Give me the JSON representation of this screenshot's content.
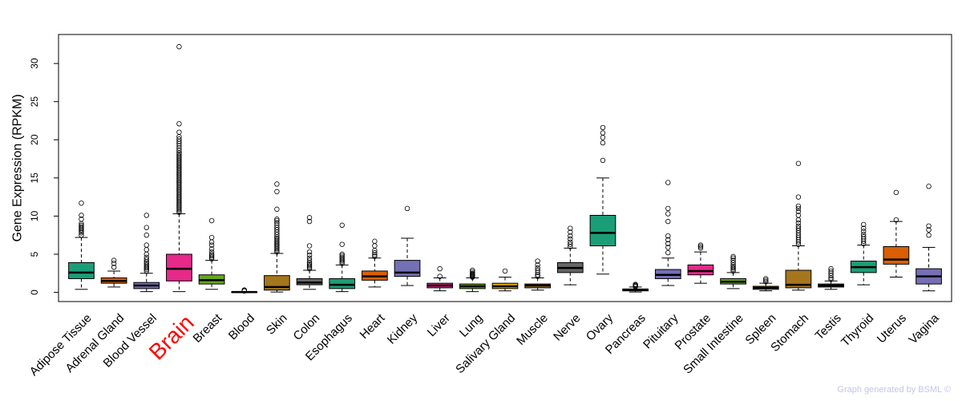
{
  "chart_data": {
    "type": "boxplot",
    "title": "",
    "xlabel": "",
    "ylabel": "Gene Expression (RPKM)",
    "ylim": [
      -1.2,
      33.8
    ],
    "yticks": [
      0,
      5,
      10,
      15,
      20,
      25,
      30
    ],
    "highlight": "Brain",
    "highlight_color": "#ff0000",
    "categories": [
      "Adipose Tissue",
      "Adrenal Gland",
      "Blood Vessel",
      "Brain",
      "Breast",
      "Blood",
      "Skin",
      "Colon",
      "Esophagus",
      "Heart",
      "Kidney",
      "Liver",
      "Lung",
      "Salivary Gland",
      "Muscle",
      "Nerve",
      "Ovary",
      "Pancreas",
      "Pituitary",
      "Prostate",
      "Small Intestine",
      "Spleen",
      "Stomach",
      "Testis",
      "Thyroid",
      "Uterus",
      "Vagina"
    ],
    "colors": [
      "#1b9e77",
      "#d95f02",
      "#7570b3",
      "#e7298a",
      "#66a61e",
      "#e6ab02",
      "#a6761d",
      "#666666",
      "#1b9e77",
      "#d95f02",
      "#7570b3",
      "#e7298a",
      "#66a61e",
      "#e6ab02",
      "#a6761d",
      "#666666",
      "#1b9e77",
      "#d95f02",
      "#7570b3",
      "#e7298a",
      "#66a61e",
      "#e6ab02",
      "#a6761d",
      "#666666",
      "#1b9e77",
      "#d95f02",
      "#7570b3"
    ],
    "boxes": [
      {
        "name": "Adipose Tissue",
        "whisker_low": 0.4,
        "q1": 1.8,
        "median": 2.6,
        "q3": 3.9,
        "whisker_high": 7.2,
        "outliers": [
          7.5,
          7.8,
          8.0,
          8.2,
          8.4,
          8.6,
          8.8,
          9.0,
          9.6,
          10.1,
          11.7
        ]
      },
      {
        "name": "Adrenal Gland",
        "whisker_low": 0.7,
        "q1": 1.2,
        "median": 1.5,
        "q3": 1.9,
        "whisker_high": 2.8,
        "outliers": [
          3.3,
          3.8,
          4.2
        ]
      },
      {
        "name": "Blood Vessel",
        "whisker_low": 0.1,
        "q1": 0.5,
        "median": 0.9,
        "q3": 1.3,
        "whisker_high": 2.5,
        "outliers": [
          2.8,
          3.0,
          3.2,
          3.4,
          3.6,
          3.8,
          4.0,
          4.3,
          4.6,
          5.0,
          5.6,
          6.2,
          7.5,
          8.5,
          10.1
        ]
      },
      {
        "name": "Brain",
        "whisker_low": 0.1,
        "q1": 1.5,
        "median": 3.1,
        "q3": 5.0,
        "whisker_high": 10.3,
        "outliers": [
          10.5,
          10.7,
          10.9,
          11.1,
          11.3,
          11.5,
          11.7,
          11.9,
          12.1,
          12.3,
          12.5,
          12.7,
          12.9,
          13.1,
          13.3,
          13.5,
          13.7,
          13.9,
          14.1,
          14.3,
          14.5,
          14.7,
          14.9,
          15.1,
          15.3,
          15.5,
          15.7,
          15.9,
          16.1,
          16.3,
          16.5,
          16.7,
          16.9,
          17.1,
          17.3,
          17.5,
          17.7,
          17.9,
          18.1,
          18.3,
          18.6,
          18.9,
          19.2,
          19.5,
          19.8,
          20.1,
          20.4,
          21.0,
          22.1,
          32.2
        ]
      },
      {
        "name": "Breast",
        "whisker_low": 0.4,
        "q1": 1.1,
        "median": 1.6,
        "q3": 2.3,
        "whisker_high": 4.2,
        "outliers": [
          4.4,
          4.6,
          4.8,
          5.0,
          5.3,
          5.7,
          6.2,
          6.6,
          7.2,
          9.4
        ]
      },
      {
        "name": "Blood",
        "whisker_low": 0.0,
        "q1": 0.02,
        "median": 0.05,
        "q3": 0.08,
        "whisker_high": 0.12,
        "outliers": [
          0.18,
          0.25,
          0.32
        ]
      },
      {
        "name": "Skin",
        "whisker_low": 0.05,
        "q1": 0.3,
        "median": 0.7,
        "q3": 2.2,
        "whisker_high": 5.1,
        "outliers": [
          5.3,
          5.5,
          5.7,
          5.9,
          6.1,
          6.3,
          6.5,
          6.7,
          6.9,
          7.1,
          7.3,
          7.6,
          7.9,
          8.2,
          8.5,
          8.8,
          9.1,
          9.4,
          9.6,
          10.9,
          13.2,
          14.2
        ]
      },
      {
        "name": "Colon",
        "whisker_low": 0.4,
        "q1": 1.0,
        "median": 1.3,
        "q3": 1.8,
        "whisker_high": 2.9,
        "outliers": [
          3.1,
          3.3,
          3.5,
          3.7,
          3.9,
          4.2,
          4.5,
          4.9,
          5.3,
          6.1,
          9.3,
          9.8
        ]
      },
      {
        "name": "Esophagus",
        "whisker_low": 0.1,
        "q1": 0.5,
        "median": 1.0,
        "q3": 1.8,
        "whisker_high": 3.6,
        "outliers": [
          3.8,
          4.0,
          4.2,
          4.4,
          4.6,
          4.8,
          5.0,
          6.3,
          8.8
        ]
      },
      {
        "name": "Heart",
        "whisker_low": 0.7,
        "q1": 1.6,
        "median": 2.1,
        "q3": 2.8,
        "whisker_high": 4.5,
        "outliers": [
          4.7,
          4.9,
          5.2,
          5.5,
          6.1,
          6.7
        ]
      },
      {
        "name": "Kidney",
        "whisker_low": 0.9,
        "q1": 2.1,
        "median": 2.6,
        "q3": 4.2,
        "whisker_high": 7.1,
        "outliers": [
          11.0
        ]
      },
      {
        "name": "Liver",
        "whisker_low": 0.2,
        "q1": 0.6,
        "median": 0.9,
        "q3": 1.2,
        "whisker_high": 1.9,
        "outliers": [
          2.1,
          3.1
        ]
      },
      {
        "name": "Lung",
        "whisker_low": 0.1,
        "q1": 0.5,
        "median": 0.8,
        "q3": 1.1,
        "whisker_high": 1.9,
        "outliers": [
          2.0,
          2.1,
          2.2,
          2.3,
          2.4,
          2.5,
          2.7,
          2.9
        ]
      },
      {
        "name": "Salivary Gland",
        "whisker_low": 0.2,
        "q1": 0.5,
        "median": 0.8,
        "q3": 1.2,
        "whisker_high": 2.0,
        "outliers": [
          2.8
        ]
      },
      {
        "name": "Muscle",
        "whisker_low": 0.3,
        "q1": 0.6,
        "median": 0.9,
        "q3": 1.1,
        "whisker_high": 1.9,
        "outliers": [
          2.1,
          2.3,
          2.6,
          2.9,
          3.2,
          3.6,
          4.1
        ]
      },
      {
        "name": "Nerve",
        "whisker_low": 1.0,
        "q1": 2.6,
        "median": 3.2,
        "q3": 3.9,
        "whisker_high": 5.8,
        "outliers": [
          6.0,
          6.3,
          6.6,
          7.0,
          7.4,
          7.9,
          8.4
        ]
      },
      {
        "name": "Ovary",
        "whisker_low": 2.4,
        "q1": 6.1,
        "median": 7.8,
        "q3": 10.1,
        "whisker_high": 15.0,
        "outliers": [
          17.3,
          19.6,
          20.3,
          20.9,
          21.6
        ]
      },
      {
        "name": "Pancreas",
        "whisker_low": 0.05,
        "q1": 0.2,
        "median": 0.3,
        "q3": 0.45,
        "whisker_high": 0.7,
        "outliers": [
          0.75,
          0.85,
          0.95,
          1.05
        ]
      },
      {
        "name": "Pituitary",
        "whisker_low": 0.9,
        "q1": 1.8,
        "median": 2.3,
        "q3": 3.0,
        "whisker_high": 4.5,
        "outliers": [
          5.2,
          5.9,
          6.4,
          6.9,
          7.4,
          9.3,
          10.3,
          11.0,
          14.4
        ]
      },
      {
        "name": "Prostate",
        "whisker_low": 1.2,
        "q1": 2.3,
        "median": 2.8,
        "q3": 3.6,
        "whisker_high": 5.3,
        "outliers": [
          5.8,
          6.0,
          6.2
        ]
      },
      {
        "name": "Small Intestine",
        "whisker_low": 0.5,
        "q1": 1.1,
        "median": 1.4,
        "q3": 1.8,
        "whisker_high": 2.6,
        "outliers": [
          2.8,
          3.0,
          3.2,
          3.4,
          3.6,
          3.9,
          4.2,
          4.5,
          4.7
        ]
      },
      {
        "name": "Spleen",
        "whisker_low": 0.2,
        "q1": 0.4,
        "median": 0.6,
        "q3": 0.8,
        "whisker_high": 1.2,
        "outliers": [
          1.4,
          1.6,
          1.8
        ]
      },
      {
        "name": "Stomach",
        "whisker_low": 0.3,
        "q1": 0.6,
        "median": 1.0,
        "q3": 2.9,
        "whisker_high": 6.1,
        "outliers": [
          6.3,
          6.6,
          6.9,
          7.2,
          7.5,
          7.8,
          8.1,
          8.4,
          8.7,
          9.1,
          9.5,
          10.1,
          10.6,
          11.0,
          11.3,
          12.5,
          16.9
        ]
      },
      {
        "name": "Testis",
        "whisker_low": 0.4,
        "q1": 0.7,
        "median": 0.9,
        "q3": 1.1,
        "whisker_high": 1.5,
        "outliers": [
          1.7,
          1.9,
          2.2,
          2.5,
          2.8,
          3.1
        ]
      },
      {
        "name": "Thyroid",
        "whisker_low": 1.0,
        "q1": 2.6,
        "median": 3.3,
        "q3": 4.1,
        "whisker_high": 6.2,
        "outliers": [
          6.4,
          6.7,
          7.0,
          7.3,
          7.6,
          8.0,
          8.4,
          8.9
        ]
      },
      {
        "name": "Uterus",
        "whisker_low": 2.0,
        "q1": 3.7,
        "median": 4.3,
        "q3": 6.0,
        "whisker_high": 9.3,
        "outliers": [
          9.5,
          13.1
        ]
      },
      {
        "name": "Vagina",
        "whisker_low": 0.2,
        "q1": 1.1,
        "median": 2.1,
        "q3": 3.1,
        "whisker_high": 5.9,
        "outliers": [
          7.5,
          8.2,
          8.7,
          13.9
        ]
      }
    ]
  },
  "footer": {
    "credit": "Graph generated by BSML ©"
  }
}
